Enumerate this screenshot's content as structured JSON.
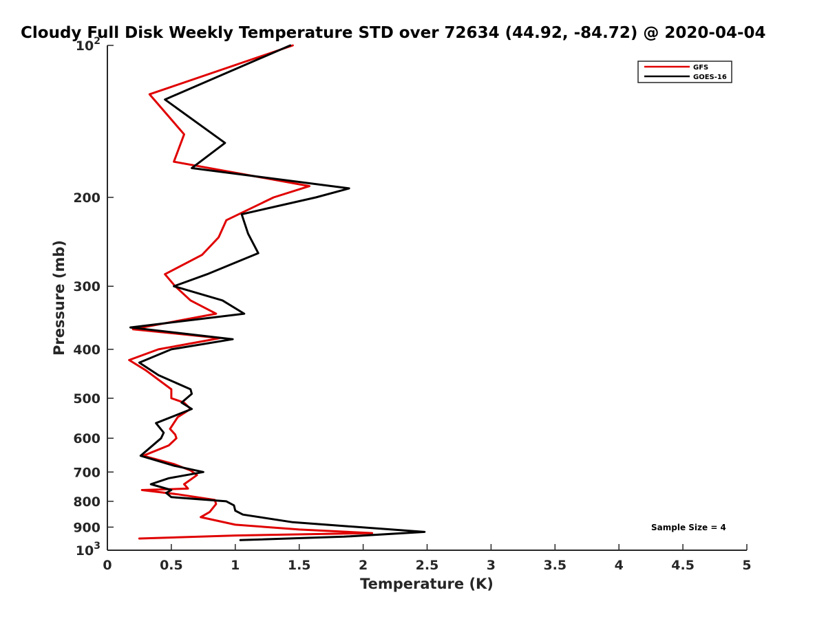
{
  "chart_data": {
    "type": "line",
    "title": "Cloudy Full Disk Weekly Temperature STD over 72634 (44.92, -84.72) @ 2020-04-04",
    "xlabel": "Temperature (K)",
    "ylabel": "Pressure (mb)",
    "xlim": [
      0,
      5
    ],
    "ylim": [
      100,
      1000
    ],
    "y_scale": "log",
    "y_reversed": true,
    "x_ticks": [
      "0",
      "0.5",
      "1",
      "1.5",
      "2",
      "2.5",
      "3",
      "3.5",
      "4",
      "4.5",
      "5"
    ],
    "x_tick_values": [
      0,
      0.5,
      1,
      1.5,
      2,
      2.5,
      3,
      3.5,
      4,
      4.5,
      5
    ],
    "y_ticks": [
      {
        "value": 100,
        "base": "10",
        "exp": "2"
      },
      {
        "value": 200,
        "label": "200"
      },
      {
        "value": 300,
        "label": "300"
      },
      {
        "value": 400,
        "label": "400"
      },
      {
        "value": 500,
        "label": "500"
      },
      {
        "value": 600,
        "label": "600"
      },
      {
        "value": 700,
        "label": "700"
      },
      {
        "value": 800,
        "label": "800"
      },
      {
        "value": 900,
        "label": "900"
      },
      {
        "value": 1000,
        "base": "10",
        "exp": "3"
      }
    ],
    "grid": false,
    "legend_position": "top-right",
    "annotation": "Sample Size = 4",
    "series": [
      {
        "name": "GFS",
        "color": "#e00000",
        "points": [
          [
            1.45,
            100
          ],
          [
            0.33,
            125
          ],
          [
            0.6,
            150
          ],
          [
            0.52,
            170
          ],
          [
            1.58,
            190
          ],
          [
            1.3,
            200
          ],
          [
            0.93,
            222
          ],
          [
            0.87,
            240
          ],
          [
            0.74,
            260
          ],
          [
            0.45,
            284
          ],
          [
            0.53,
            300
          ],
          [
            0.65,
            320
          ],
          [
            0.85,
            340
          ],
          [
            0.2,
            365
          ],
          [
            0.88,
            380
          ],
          [
            0.4,
            400
          ],
          [
            0.17,
            420
          ],
          [
            0.3,
            440
          ],
          [
            0.5,
            480
          ],
          [
            0.5,
            500
          ],
          [
            0.6,
            510
          ],
          [
            0.65,
            525
          ],
          [
            0.55,
            545
          ],
          [
            0.49,
            575
          ],
          [
            0.53,
            590
          ],
          [
            0.54,
            600
          ],
          [
            0.48,
            620
          ],
          [
            0.28,
            650
          ],
          [
            0.52,
            675
          ],
          [
            0.65,
            695
          ],
          [
            0.7,
            710
          ],
          [
            0.6,
            740
          ],
          [
            0.63,
            755
          ],
          [
            0.27,
            760
          ],
          [
            0.55,
            775
          ],
          [
            0.84,
            795
          ],
          [
            0.85,
            810
          ],
          [
            0.8,
            840
          ],
          [
            0.73,
            860
          ],
          [
            1.0,
            890
          ],
          [
            1.5,
            910
          ],
          [
            2.07,
            925
          ],
          [
            1.0,
            935
          ],
          [
            0.25,
            948
          ]
        ]
      },
      {
        "name": "GOES-16",
        "color": "#000000",
        "points": [
          [
            1.43,
            100
          ],
          [
            0.45,
            128
          ],
          [
            0.92,
            156
          ],
          [
            0.66,
            175
          ],
          [
            1.89,
            192
          ],
          [
            1.63,
            200
          ],
          [
            1.05,
            216
          ],
          [
            1.1,
            236
          ],
          [
            1.18,
            258
          ],
          [
            0.78,
            284
          ],
          [
            0.52,
            300
          ],
          [
            0.9,
            320
          ],
          [
            1.07,
            340
          ],
          [
            0.18,
            362
          ],
          [
            0.98,
            382
          ],
          [
            0.5,
            400
          ],
          [
            0.25,
            425
          ],
          [
            0.4,
            450
          ],
          [
            0.65,
            480
          ],
          [
            0.66,
            490
          ],
          [
            0.58,
            510
          ],
          [
            0.66,
            525
          ],
          [
            0.38,
            560
          ],
          [
            0.44,
            585
          ],
          [
            0.42,
            600
          ],
          [
            0.26,
            650
          ],
          [
            0.52,
            680
          ],
          [
            0.75,
            700
          ],
          [
            0.48,
            720
          ],
          [
            0.34,
            740
          ],
          [
            0.5,
            760
          ],
          [
            0.46,
            770
          ],
          [
            0.5,
            785
          ],
          [
            0.93,
            800
          ],
          [
            0.99,
            815
          ],
          [
            1.0,
            835
          ],
          [
            1.06,
            850
          ],
          [
            1.45,
            880
          ],
          [
            2.48,
            920
          ],
          [
            1.85,
            940
          ],
          [
            1.04,
            955
          ]
        ]
      }
    ]
  }
}
